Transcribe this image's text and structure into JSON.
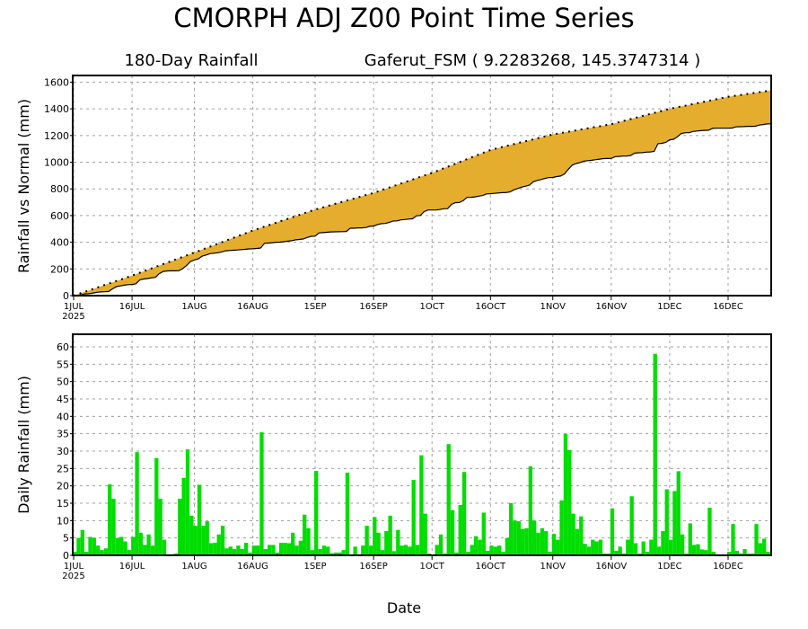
{
  "title": "CMORPH ADJ Z00 Point Time Series",
  "subtitle_left": "180-Day Rainfall",
  "subtitle_right": "Gaferut_FSM ( 9.2283268, 145.3747314 )",
  "colors": {
    "fill": "#E5AD2E",
    "bars": "#00DD00",
    "grid": "#A0A0A0"
  },
  "chart_data": [
    {
      "type": "area",
      "ylabel": "Rainfall vs Normal (mm)",
      "ylim": [
        0,
        1650
      ],
      "yticks": [
        0,
        200,
        400,
        600,
        800,
        1000,
        1200,
        1400,
        1600
      ],
      "xlim_days": [
        0,
        179
      ],
      "xtick_days": [
        0,
        15,
        31,
        46,
        62,
        77,
        92,
        107,
        123,
        138,
        153,
        168
      ],
      "xtick_labels": [
        "1JUL",
        "16JUL",
        "1AUG",
        "16AUG",
        "1SEP",
        "16SEP",
        "1OCT",
        "16OCT",
        "1NOV",
        "16NOV",
        "1DEC",
        "16DEC"
      ],
      "year_label": "2025",
      "grid": true,
      "series": [
        {
          "name": "Normal cumulative (dotted)",
          "points": [
            [
              0,
              0
            ],
            [
              15,
              150
            ],
            [
              31,
              323
            ],
            [
              46,
              488
            ],
            [
              62,
              645
            ],
            [
              77,
              770
            ],
            [
              92,
              920
            ],
            [
              107,
              1092
            ],
            [
              123,
              1208
            ],
            [
              138,
              1285
            ],
            [
              153,
              1400
            ],
            [
              168,
              1490
            ],
            [
              179,
              1538
            ]
          ]
        },
        {
          "name": "Actual cumulative",
          "derived_from": "daily rainfall"
        }
      ]
    },
    {
      "type": "bar",
      "ylabel": "Daily Rainfall (mm)",
      "xlabel": "Date",
      "ylim": [
        0,
        63
      ],
      "yticks": [
        0,
        5,
        10,
        15,
        20,
        25,
        30,
        35,
        40,
        45,
        50,
        55,
        60
      ],
      "grid": true,
      "start_date": "1JUL 2025",
      "values": [
        1,
        5,
        7.3,
        1,
        5.3,
        5,
        2.8,
        1.5,
        2,
        20.4,
        16.3,
        5,
        5.3,
        4,
        1.5,
        5.3,
        29.7,
        6.5,
        3,
        6,
        2.8,
        28,
        16.3,
        4.5,
        0.3,
        0.3,
        0.5,
        16.3,
        22.3,
        30.5,
        11.4,
        8.5,
        20.3,
        8.5,
        9.8,
        3.5,
        3.6,
        6,
        8.5,
        2,
        2.5,
        1.8,
        2.8,
        1.8,
        3.6,
        0.8,
        2.8,
        2.8,
        35.4,
        1.8,
        3,
        3,
        0.8,
        3.6,
        3.6,
        3.5,
        6.5,
        2.8,
        4.2,
        11.7,
        7.8,
        1.5,
        24.3,
        1.8,
        2.8,
        2.5,
        0.6,
        0.8,
        0.8,
        1.5,
        23.8,
        0.2,
        2.5,
        0.3,
        2.8,
        8.5,
        2.8,
        11,
        6.5,
        1.5,
        7,
        11.4,
        1.2,
        7.3,
        2.8,
        3,
        2.5,
        21.7,
        3,
        28.8,
        12,
        0.5,
        0.2,
        3,
        6,
        0.5,
        32,
        13,
        0.8,
        14.5,
        24,
        1,
        3,
        5.5,
        4.5,
        12.3,
        1.3,
        2.8,
        2.5,
        2.8,
        1,
        5,
        15,
        10,
        9.8,
        7.6,
        7.8,
        25.6,
        10,
        6.5,
        7.8,
        7,
        1,
        6.2,
        4.5,
        15.8,
        35,
        30.3,
        12,
        7.6,
        11.2,
        3.3,
        2.5,
        4.5,
        4,
        4.5,
        0.5,
        0.5,
        13.5,
        1.3,
        2.5,
        0.5,
        4.5,
        17,
        3.5,
        0.5,
        4,
        1,
        4.5,
        58,
        2.5,
        7,
        19,
        4.5,
        18.5,
        24.2,
        6,
        0.5,
        9.2,
        3,
        3.2,
        1.7,
        1.5,
        13.7,
        1,
        0.1,
        0.1,
        0.1,
        1,
        9,
        1.3,
        0.5,
        1.8,
        0.5,
        0.5,
        9,
        3.5,
        4.8,
        1,
        0
      ]
    }
  ]
}
